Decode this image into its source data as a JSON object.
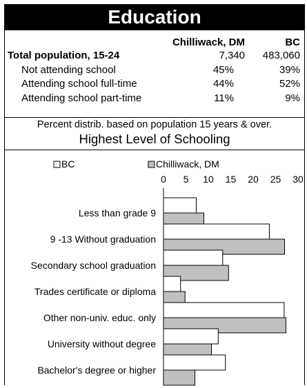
{
  "title": "Education",
  "table": {
    "columns": [
      "Chilliwack, DM",
      "BC"
    ],
    "rows": [
      {
        "label": "Total population, 15-24",
        "values": [
          "7,340",
          "483,060"
        ],
        "bold": true
      },
      {
        "label": "Not attending school",
        "values": [
          "45%",
          "39%"
        ]
      },
      {
        "label": "Attending school full-time",
        "values": [
          "44%",
          "52%"
        ]
      },
      {
        "label": "Attending school part-time",
        "values": [
          "11%",
          "9%"
        ]
      }
    ]
  },
  "note": "Percent distrib. based on population 15 years & over.",
  "subtitle": "Highest Level of Schooling",
  "chart_data": {
    "type": "bar",
    "orientation": "horizontal",
    "categories": [
      "Less than grade 9",
      "9 -13 Without graduation",
      "Secondary school graduation",
      "Trades certificate or diploma",
      "Other non-univ. educ. only",
      "University without degree",
      "Bachelor's degree or higher"
    ],
    "series": [
      {
        "name": "BC",
        "color": "#ffffff",
        "values": [
          7.3,
          23.6,
          13.2,
          3.8,
          26.9,
          12.2,
          13.8
        ]
      },
      {
        "name": "Chilliwack, DM",
        "color": "#c0c0c0",
        "values": [
          9.0,
          27.0,
          14.5,
          4.8,
          27.3,
          10.7,
          7.0
        ]
      }
    ],
    "xlim": [
      0,
      30
    ],
    "xticks": [
      0,
      5,
      10,
      15,
      20,
      25,
      30
    ],
    "legend_position": "top",
    "grid": false
  }
}
